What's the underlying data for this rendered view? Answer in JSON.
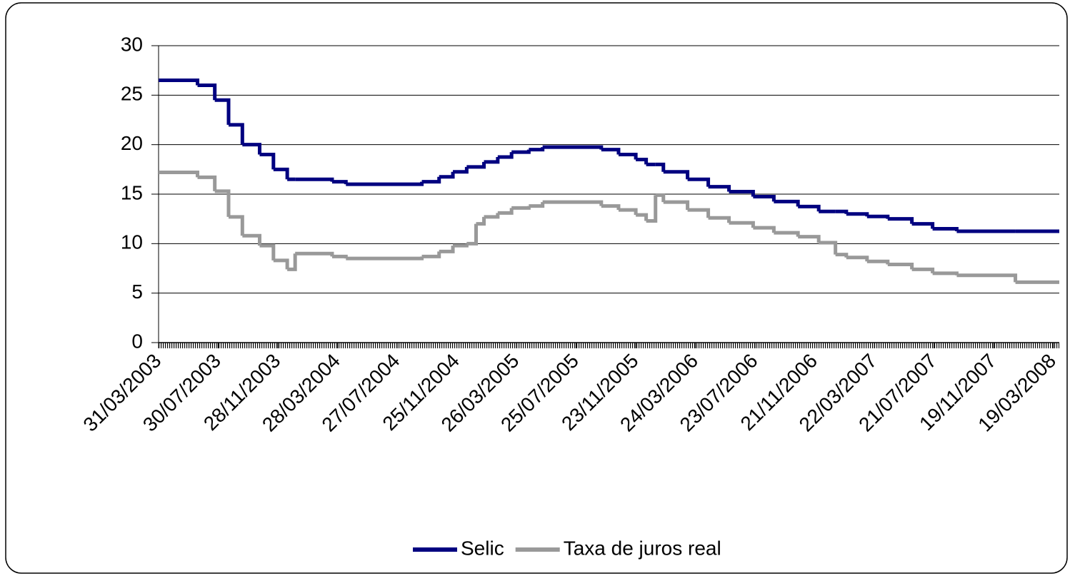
{
  "chart_data": {
    "type": "step-line",
    "x": [
      "31/03/2003",
      "18/06/2003",
      "23/07/2003",
      "20/08/2003",
      "17/09/2003",
      "22/10/2003",
      "19/11/2003",
      "17/12/2003",
      "02/01/2004",
      "17/03/2004",
      "14/04/2004",
      "15/09/2004",
      "20/10/2004",
      "17/11/2004",
      "15/12/2004",
      "03/01/2005",
      "19/01/2005",
      "16/02/2005",
      "16/03/2005",
      "20/04/2005",
      "18/05/2005",
      "14/09/2005",
      "19/10/2005",
      "23/11/2005",
      "14/12/2005",
      "02/01/2006",
      "18/01/2006",
      "08/03/2006",
      "19/04/2006",
      "31/05/2006",
      "19/07/2006",
      "30/08/2006",
      "18/10/2006",
      "29/11/2006",
      "02/01/2007",
      "24/01/2007",
      "07/03/2007",
      "18/04/2007",
      "06/06/2007",
      "18/07/2007",
      "05/09/2007",
      "02/01/2008",
      "31/03/2008"
    ],
    "series": [
      {
        "name": "Selic",
        "color": "#000080",
        "values": [
          26.5,
          26,
          24.5,
          22,
          20,
          19,
          17.5,
          16.5,
          16.5,
          16.25,
          16,
          16.25,
          16.75,
          17.25,
          17.75,
          17.75,
          18.25,
          18.75,
          19.25,
          19.5,
          19.75,
          19.5,
          19,
          18.5,
          18,
          18,
          17.25,
          16.5,
          15.75,
          15.25,
          14.75,
          14.25,
          13.75,
          13.25,
          13.25,
          13,
          12.75,
          12.5,
          12,
          11.5,
          11.25,
          11.25,
          11.25
        ]
      },
      {
        "name": "Taxa de juros real",
        "color": "#999999",
        "values": [
          17.2,
          16.7,
          15.3,
          12.7,
          10.8,
          9.8,
          8.3,
          7.4,
          9,
          8.7,
          8.5,
          8.7,
          9.2,
          9.8,
          10,
          12,
          12.7,
          13.1,
          13.6,
          13.8,
          14.2,
          13.8,
          13.4,
          12.9,
          12.3,
          14.9,
          14.2,
          13.4,
          12.6,
          12.1,
          11.6,
          11.1,
          10.7,
          10.1,
          8.9,
          8.6,
          8.2,
          7.9,
          7.4,
          7,
          6.8,
          6.1,
          6.1
        ]
      }
    ],
    "xlim": [
      "31/03/2003",
      "31/03/2008"
    ],
    "xticks": [
      "31/03/2003",
      "30/07/2003",
      "28/11/2003",
      "28/03/2004",
      "27/07/2004",
      "25/11/2004",
      "26/03/2005",
      "25/07/2005",
      "23/11/2005",
      "24/03/2006",
      "23/07/2006",
      "21/11/2006",
      "22/03/2007",
      "21/07/2007",
      "19/11/2007",
      "19/03/2008"
    ],
    "ylim": [
      0,
      30
    ],
    "yticks": [
      0,
      5,
      10,
      15,
      20,
      25,
      30
    ],
    "grid": true,
    "legend": "bottom"
  }
}
